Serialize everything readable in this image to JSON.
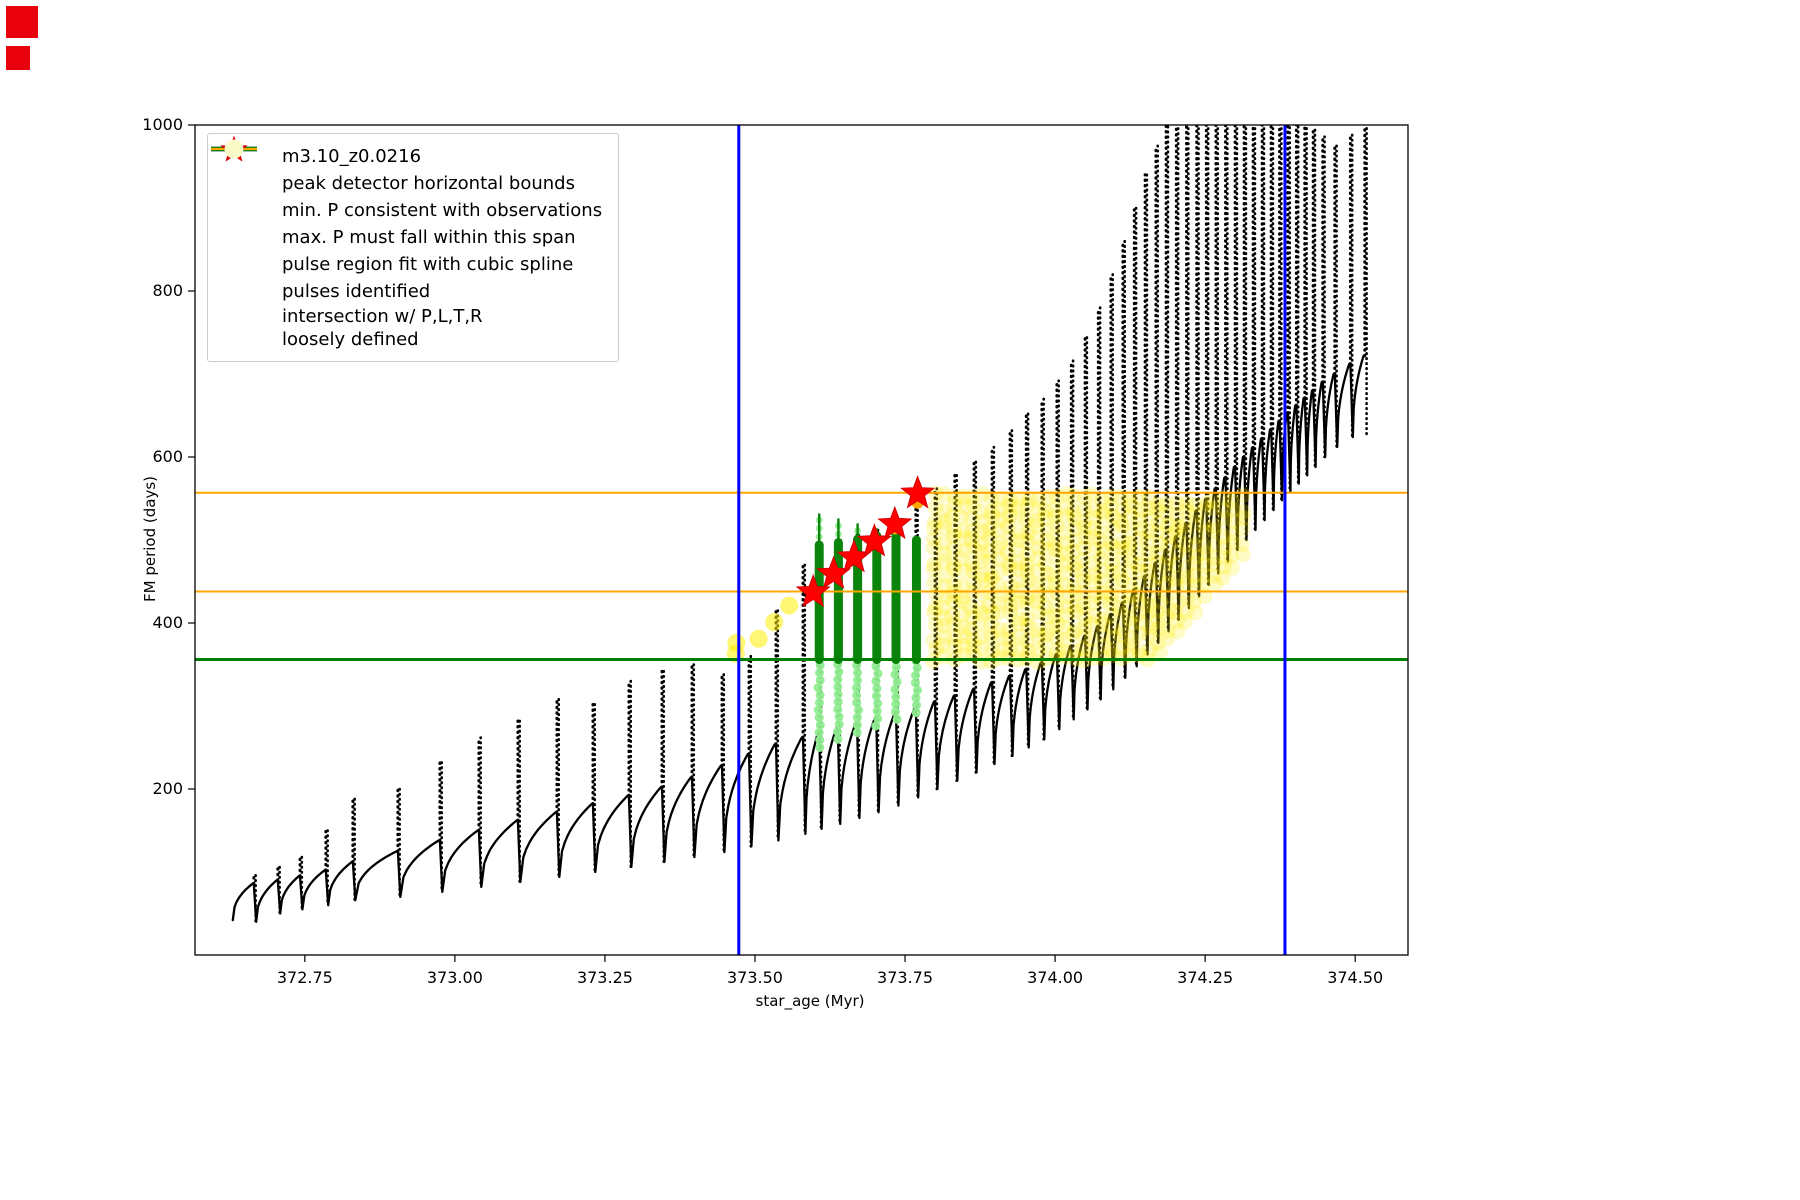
{
  "window": {
    "corner_marker_color": "#e8000d"
  },
  "chart_data": {
    "type": "line",
    "title": "",
    "xlabel": "star_age (Myr)",
    "ylabel": "FM period (days)",
    "xlim": [
      372.567,
      374.588
    ],
    "ylim": [
      0,
      1000
    ],
    "xticks": [
      372.75,
      373.0,
      373.25,
      373.5,
      373.75,
      374.0,
      374.25,
      374.5
    ],
    "xtick_labels": [
      "372.75",
      "373.00",
      "373.25",
      "373.50",
      "373.75",
      "374.00",
      "374.25",
      "374.50"
    ],
    "yticks": [
      200,
      400,
      600,
      800,
      1000
    ],
    "ytick_labels": [
      "200",
      "400",
      "600",
      "800",
      "1000"
    ],
    "grid": false,
    "legend": {
      "position": "upper-left",
      "entries": [
        {
          "label": "m3.10_z0.0216",
          "marker": "line-dot",
          "color": "#000000"
        },
        {
          "label": "peak detector horizontal bounds",
          "marker": "thick-line",
          "color": "#0000ff"
        },
        {
          "label": "min. P consistent with observations",
          "marker": "thick-line",
          "color": "#008000"
        },
        {
          "label": "max. P must fall within this span",
          "marker": "line",
          "color": "#ffa500"
        },
        {
          "label": "pulse region fit with cubic spline",
          "marker": "small-dot",
          "color": "#90ee90"
        },
        {
          "label": "pulses identified",
          "marker": "star",
          "color": "#ff0000"
        },
        {
          "label": "intersection w/ P,L,T,R\nloosely defined",
          "marker": "big-dot",
          "color": "#fbfbc8"
        }
      ]
    },
    "peak_detector_bounds": {
      "color": "#0000ff",
      "xs": [
        373.473,
        374.383
      ],
      "width": 3
    },
    "hlines": [
      {
        "name": "min-P-consistent",
        "y": 356,
        "color": "#008000",
        "width": 3
      },
      {
        "name": "max-P-span-lower",
        "y": 438,
        "color": "#ffa500",
        "width": 2
      },
      {
        "name": "max-P-span-upper",
        "y": 557,
        "color": "#ffa500",
        "width": 2
      }
    ],
    "main_series": {
      "name": "m3.10_z0.0216",
      "color": "#000000",
      "pulses_xminshoulderpeak": [
        [
          372.665,
          42,
          86,
          96
        ],
        [
          372.705,
          40,
          90,
          106
        ],
        [
          372.742,
          50,
          95,
          118
        ],
        [
          372.785,
          55,
          102,
          150
        ],
        [
          372.83,
          60,
          112,
          188
        ],
        [
          372.905,
          66,
          125,
          200
        ],
        [
          372.975,
          70,
          138,
          232
        ],
        [
          373.04,
          76,
          150,
          262
        ],
        [
          373.105,
          82,
          162,
          282
        ],
        [
          373.17,
          88,
          172,
          308
        ],
        [
          373.23,
          94,
          182,
          302
        ],
        [
          373.29,
          100,
          192,
          330
        ],
        [
          373.345,
          106,
          202,
          342
        ],
        [
          373.395,
          112,
          214,
          350
        ],
        [
          373.445,
          118,
          228,
          338
        ],
        [
          373.49,
          124,
          242,
          360
        ],
        [
          373.535,
          131,
          254,
          415
        ],
        [
          373.58,
          138,
          262,
          470
        ],
        [
          373.607,
          146,
          268,
          492
        ],
        [
          373.638,
          152,
          274,
          500
        ],
        [
          373.67,
          158,
          280,
          506
        ],
        [
          373.702,
          165,
          286,
          512
        ],
        [
          373.735,
          172,
          292,
          522
        ],
        [
          373.768,
          180,
          298,
          548
        ],
        [
          373.8,
          190,
          305,
          562
        ],
        [
          373.833,
          200,
          312,
          578
        ],
        [
          373.865,
          210,
          320,
          594
        ],
        [
          373.895,
          220,
          328,
          612
        ],
        [
          373.925,
          230,
          336,
          632
        ],
        [
          373.952,
          240,
          344,
          652
        ],
        [
          373.978,
          250,
          352,
          670
        ],
        [
          374.003,
          260,
          362,
          692
        ],
        [
          374.027,
          272,
          372,
          716
        ],
        [
          374.05,
          284,
          384,
          744
        ],
        [
          374.072,
          296,
          396,
          780
        ],
        [
          374.093,
          308,
          410,
          820
        ],
        [
          374.113,
          320,
          424,
          860
        ],
        [
          374.132,
          334,
          440,
          900
        ],
        [
          374.15,
          348,
          456,
          940
        ],
        [
          374.168,
          362,
          472,
          975
        ],
        [
          374.185,
          376,
          488,
          1010
        ],
        [
          374.202,
          390,
          504,
          1020
        ],
        [
          374.219,
          404,
          520,
          1020
        ],
        [
          374.236,
          418,
          535,
          1020
        ],
        [
          374.252,
          432,
          549,
          1020
        ],
        [
          374.268,
          446,
          562,
          1020
        ],
        [
          374.284,
          460,
          575,
          1020
        ],
        [
          374.3,
          474,
          588,
          1020
        ],
        [
          374.315,
          488,
          600,
          1020
        ],
        [
          374.33,
          500,
          611,
          1020
        ],
        [
          374.345,
          512,
          622,
          1020
        ],
        [
          374.36,
          524,
          633,
          1020
        ],
        [
          374.374,
          536,
          643,
          1020
        ],
        [
          374.388,
          548,
          653,
          1015
        ],
        [
          374.402,
          558,
          662,
          1010
        ],
        [
          374.416,
          568,
          671,
          1002
        ],
        [
          374.43,
          578,
          680,
          994
        ],
        [
          374.446,
          588,
          690,
          986
        ],
        [
          374.466,
          600,
          700,
          975
        ],
        [
          374.492,
          612,
          712,
          988
        ],
        [
          374.516,
          624,
          722,
          996
        ]
      ]
    },
    "pulse_region_spline": {
      "bar_color": "#0a840a",
      "light_color": "#90ee90",
      "columns": [
        {
          "x": 373.607,
          "y0": 356,
          "y1": 494,
          "below": 250,
          "top": 532
        },
        {
          "x": 373.639,
          "y0": 356,
          "y1": 497,
          "below": 260,
          "top": 526
        },
        {
          "x": 373.671,
          "y0": 356,
          "y1": 501,
          "below": 268,
          "top": 520
        },
        {
          "x": 373.703,
          "y0": 356,
          "y1": 505,
          "below": 276,
          "top": 514
        },
        {
          "x": 373.735,
          "y0": 356,
          "y1": 508,
          "below": 284,
          "top": 510
        },
        {
          "x": 373.769,
          "y0": 356,
          "y1": 500,
          "below": 292,
          "top": 505
        }
      ]
    },
    "pulses_identified": {
      "color": "#ff0000",
      "points": [
        [
          373.597,
          437
        ],
        [
          373.631,
          459
        ],
        [
          373.665,
          479
        ],
        [
          373.699,
          498
        ],
        [
          373.733,
          519
        ],
        [
          373.771,
          556
        ]
      ]
    },
    "orange_peak_dots": {
      "color": "#ffa500",
      "points": [
        [
          373.733,
          514
        ],
        [
          373.771,
          545
        ]
      ]
    },
    "intersection_region": {
      "color": "#ffee00",
      "x_start": 373.8,
      "x_end": 374.312,
      "x_step": 0.0155,
      "y_top": 556,
      "y_bottom_min": 357,
      "isolated_points": [
        [
          373.468,
          363
        ],
        [
          373.469,
          376
        ],
        [
          373.506,
          381
        ],
        [
          373.532,
          401
        ],
        [
          373.557,
          421
        ]
      ]
    }
  }
}
